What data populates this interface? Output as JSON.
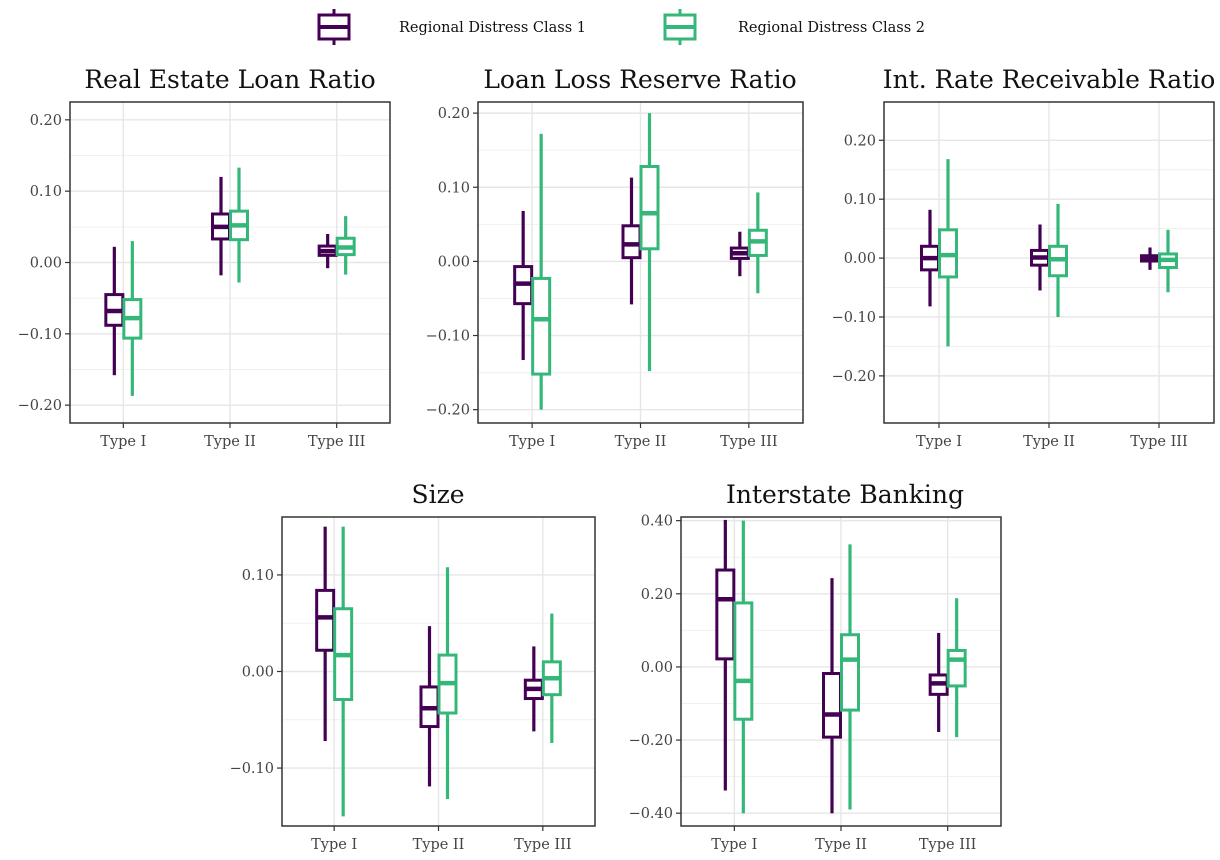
{
  "legend": {
    "entries": [
      {
        "label": "Regional Distress Class 1",
        "color": "#440154"
      },
      {
        "label": "Regional Distress Class 2",
        "color": "#35b779"
      }
    ]
  },
  "chart_data": [
    {
      "type": "boxplot",
      "title": "Real Estate Loan Ratio",
      "categories": [
        "Type I",
        "Type II",
        "Type III"
      ],
      "yticks": [
        0.2,
        0.1,
        0.0,
        -0.1,
        -0.2
      ],
      "ytick_labels": [
        "0.20",
        "0.10",
        "0.00",
        "−0.10",
        "−0.20"
      ],
      "ylim": [
        -0.225,
        0.225
      ],
      "series": [
        {
          "name": "Regional Distress Class 1",
          "boxes": [
            {
              "min": -0.158,
              "q1": -0.088,
              "median": -0.068,
              "q3": -0.045,
              "max": 0.022
            },
            {
              "min": -0.018,
              "q1": 0.033,
              "median": 0.05,
              "q3": 0.068,
              "max": 0.12
            },
            {
              "min": -0.008,
              "q1": 0.01,
              "median": 0.016,
              "q3": 0.023,
              "max": 0.04
            }
          ]
        },
        {
          "name": "Regional Distress Class 2",
          "boxes": [
            {
              "min": -0.187,
              "q1": -0.106,
              "median": -0.078,
              "q3": -0.052,
              "max": 0.03
            },
            {
              "min": -0.028,
              "q1": 0.032,
              "median": 0.052,
              "q3": 0.072,
              "max": 0.133
            },
            {
              "min": -0.017,
              "q1": 0.011,
              "median": 0.021,
              "q3": 0.034,
              "max": 0.065
            }
          ]
        }
      ]
    },
    {
      "type": "boxplot",
      "title": "Loan Loss Reserve Ratio",
      "categories": [
        "Type I",
        "Type II",
        "Type III"
      ],
      "yticks": [
        0.2,
        0.1,
        0.0,
        -0.1,
        -0.2
      ],
      "ytick_labels": [
        "0.20",
        "0.10",
        "0.00",
        "−0.10",
        "−0.20"
      ],
      "ylim": [
        -0.218,
        0.215
      ],
      "series": [
        {
          "name": "Regional Distress Class 1",
          "boxes": [
            {
              "min": -0.133,
              "q1": -0.057,
              "median": -0.03,
              "q3": -0.007,
              "max": 0.068
            },
            {
              "min": -0.058,
              "q1": 0.005,
              "median": 0.023,
              "q3": 0.048,
              "max": 0.113
            },
            {
              "min": -0.02,
              "q1": 0.004,
              "median": 0.011,
              "q3": 0.018,
              "max": 0.04
            }
          ]
        },
        {
          "name": "Regional Distress Class 2",
          "boxes": [
            {
              "min": -0.2,
              "q1": -0.152,
              "median": -0.078,
              "q3": -0.023,
              "max": 0.172
            },
            {
              "min": -0.148,
              "q1": 0.017,
              "median": 0.065,
              "q3": 0.128,
              "max": 0.2
            },
            {
              "min": -0.043,
              "q1": 0.008,
              "median": 0.027,
              "q3": 0.042,
              "max": 0.093
            }
          ]
        }
      ]
    },
    {
      "type": "boxplot",
      "title": "Int. Rate Receivable Ratio",
      "categories": [
        "Type I",
        "Type II",
        "Type III"
      ],
      "yticks": [
        0.2,
        0.1,
        0.0,
        -0.1,
        -0.2
      ],
      "ytick_labels": [
        "0.20",
        "0.10",
        "0.00",
        "−0.10",
        "−0.20"
      ],
      "ylim": [
        -0.28,
        0.265
      ],
      "series": [
        {
          "name": "Regional Distress Class 1",
          "boxes": [
            {
              "min": -0.082,
              "q1": -0.02,
              "median": 0.0,
              "q3": 0.02,
              "max": 0.082
            },
            {
              "min": -0.055,
              "q1": -0.012,
              "median": 0.001,
              "q3": 0.013,
              "max": 0.057
            },
            {
              "min": -0.02,
              "q1": -0.005,
              "median": 0.0,
              "q3": 0.004,
              "max": 0.018
            }
          ]
        },
        {
          "name": "Regional Distress Class 2",
          "boxes": [
            {
              "min": -0.15,
              "q1": -0.032,
              "median": 0.005,
              "q3": 0.048,
              "max": 0.168
            },
            {
              "min": -0.1,
              "q1": -0.03,
              "median": -0.002,
              "q3": 0.02,
              "max": 0.092
            },
            {
              "min": -0.058,
              "q1": -0.016,
              "median": -0.003,
              "q3": 0.007,
              "max": 0.048
            }
          ]
        }
      ]
    },
    {
      "type": "boxplot",
      "title": "Size",
      "categories": [
        "Type I",
        "Type II",
        "Type III"
      ],
      "yticks": [
        0.1,
        0.0,
        -0.1
      ],
      "ytick_labels": [
        "0.10",
        "0.00",
        "−0.10"
      ],
      "ylim": [
        -0.16,
        0.16
      ],
      "series": [
        {
          "name": "Regional Distress Class 1",
          "boxes": [
            {
              "min": -0.072,
              "q1": 0.022,
              "median": 0.056,
              "q3": 0.084,
              "max": 0.15
            },
            {
              "min": -0.119,
              "q1": -0.057,
              "median": -0.038,
              "q3": -0.016,
              "max": 0.047
            },
            {
              "min": -0.062,
              "q1": -0.028,
              "median": -0.018,
              "q3": -0.009,
              "max": 0.026
            }
          ]
        },
        {
          "name": "Regional Distress Class 2",
          "boxes": [
            {
              "min": -0.15,
              "q1": -0.029,
              "median": 0.017,
              "q3": 0.065,
              "max": 0.15
            },
            {
              "min": -0.132,
              "q1": -0.043,
              "median": -0.012,
              "q3": 0.017,
              "max": 0.108
            },
            {
              "min": -0.074,
              "q1": -0.024,
              "median": -0.007,
              "q3": 0.01,
              "max": 0.06
            }
          ]
        }
      ]
    },
    {
      "type": "boxplot",
      "title": "Interstate Banking",
      "categories": [
        "Type I",
        "Type II",
        "Type III"
      ],
      "yticks": [
        0.4,
        0.2,
        0.0,
        -0.2,
        -0.4
      ],
      "ytick_labels": [
        "0.40",
        "0.20",
        "0.00",
        "−0.20",
        "−0.40"
      ],
      "ylim": [
        -0.435,
        0.41
      ],
      "series": [
        {
          "name": "Regional Distress Class 1",
          "boxes": [
            {
              "min": -0.338,
              "q1": 0.022,
              "median": 0.185,
              "q3": 0.265,
              "max": 0.402
            },
            {
              "min": -0.4,
              "q1": -0.192,
              "median": -0.13,
              "q3": -0.018,
              "max": 0.243
            },
            {
              "min": -0.178,
              "q1": -0.075,
              "median": -0.045,
              "q3": -0.022,
              "max": 0.093
            }
          ]
        },
        {
          "name": "Regional Distress Class 2",
          "boxes": [
            {
              "min": -0.4,
              "q1": -0.143,
              "median": -0.038,
              "q3": 0.175,
              "max": 0.4
            },
            {
              "min": -0.39,
              "q1": -0.118,
              "median": 0.02,
              "q3": 0.088,
              "max": 0.335
            },
            {
              "min": -0.192,
              "q1": -0.052,
              "median": 0.02,
              "q3": 0.045,
              "max": 0.188
            }
          ]
        }
      ]
    }
  ]
}
